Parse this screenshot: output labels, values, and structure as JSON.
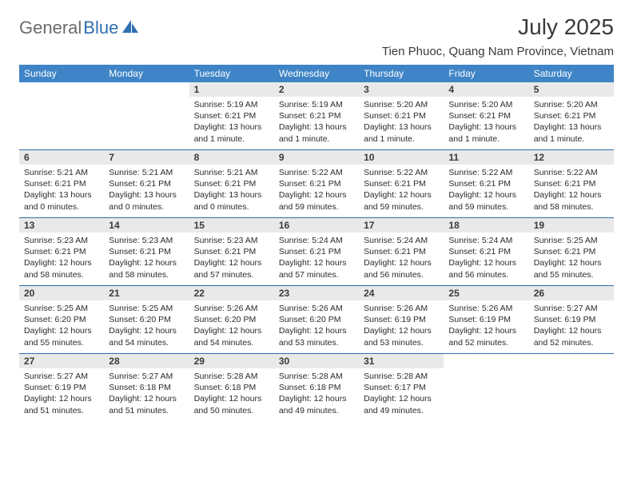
{
  "brand": {
    "part1": "General",
    "part2": "Blue"
  },
  "title": "July 2025",
  "location": "Tien Phuoc, Quang Nam Province, Vietnam",
  "colors": {
    "header_bg": "#3e84c6",
    "header_text": "#ffffff",
    "daynum_bg": "#e9e9e9",
    "week_border": "#2f6fb0",
    "brand_gray": "#6b6b6b",
    "brand_blue": "#2f6fb0"
  },
  "weekdays": [
    "Sunday",
    "Monday",
    "Tuesday",
    "Wednesday",
    "Thursday",
    "Friday",
    "Saturday"
  ],
  "weeks": [
    [
      {
        "day": "",
        "sunrise": "",
        "sunset": "",
        "daylight": ""
      },
      {
        "day": "",
        "sunrise": "",
        "sunset": "",
        "daylight": ""
      },
      {
        "day": "1",
        "sunrise": "Sunrise: 5:19 AM",
        "sunset": "Sunset: 6:21 PM",
        "daylight": "Daylight: 13 hours and 1 minute."
      },
      {
        "day": "2",
        "sunrise": "Sunrise: 5:19 AM",
        "sunset": "Sunset: 6:21 PM",
        "daylight": "Daylight: 13 hours and 1 minute."
      },
      {
        "day": "3",
        "sunrise": "Sunrise: 5:20 AM",
        "sunset": "Sunset: 6:21 PM",
        "daylight": "Daylight: 13 hours and 1 minute."
      },
      {
        "day": "4",
        "sunrise": "Sunrise: 5:20 AM",
        "sunset": "Sunset: 6:21 PM",
        "daylight": "Daylight: 13 hours and 1 minute."
      },
      {
        "day": "5",
        "sunrise": "Sunrise: 5:20 AM",
        "sunset": "Sunset: 6:21 PM",
        "daylight": "Daylight: 13 hours and 1 minute."
      }
    ],
    [
      {
        "day": "6",
        "sunrise": "Sunrise: 5:21 AM",
        "sunset": "Sunset: 6:21 PM",
        "daylight": "Daylight: 13 hours and 0 minutes."
      },
      {
        "day": "7",
        "sunrise": "Sunrise: 5:21 AM",
        "sunset": "Sunset: 6:21 PM",
        "daylight": "Daylight: 13 hours and 0 minutes."
      },
      {
        "day": "8",
        "sunrise": "Sunrise: 5:21 AM",
        "sunset": "Sunset: 6:21 PM",
        "daylight": "Daylight: 13 hours and 0 minutes."
      },
      {
        "day": "9",
        "sunrise": "Sunrise: 5:22 AM",
        "sunset": "Sunset: 6:21 PM",
        "daylight": "Daylight: 12 hours and 59 minutes."
      },
      {
        "day": "10",
        "sunrise": "Sunrise: 5:22 AM",
        "sunset": "Sunset: 6:21 PM",
        "daylight": "Daylight: 12 hours and 59 minutes."
      },
      {
        "day": "11",
        "sunrise": "Sunrise: 5:22 AM",
        "sunset": "Sunset: 6:21 PM",
        "daylight": "Daylight: 12 hours and 59 minutes."
      },
      {
        "day": "12",
        "sunrise": "Sunrise: 5:22 AM",
        "sunset": "Sunset: 6:21 PM",
        "daylight": "Daylight: 12 hours and 58 minutes."
      }
    ],
    [
      {
        "day": "13",
        "sunrise": "Sunrise: 5:23 AM",
        "sunset": "Sunset: 6:21 PM",
        "daylight": "Daylight: 12 hours and 58 minutes."
      },
      {
        "day": "14",
        "sunrise": "Sunrise: 5:23 AM",
        "sunset": "Sunset: 6:21 PM",
        "daylight": "Daylight: 12 hours and 58 minutes."
      },
      {
        "day": "15",
        "sunrise": "Sunrise: 5:23 AM",
        "sunset": "Sunset: 6:21 PM",
        "daylight": "Daylight: 12 hours and 57 minutes."
      },
      {
        "day": "16",
        "sunrise": "Sunrise: 5:24 AM",
        "sunset": "Sunset: 6:21 PM",
        "daylight": "Daylight: 12 hours and 57 minutes."
      },
      {
        "day": "17",
        "sunrise": "Sunrise: 5:24 AM",
        "sunset": "Sunset: 6:21 PM",
        "daylight": "Daylight: 12 hours and 56 minutes."
      },
      {
        "day": "18",
        "sunrise": "Sunrise: 5:24 AM",
        "sunset": "Sunset: 6:21 PM",
        "daylight": "Daylight: 12 hours and 56 minutes."
      },
      {
        "day": "19",
        "sunrise": "Sunrise: 5:25 AM",
        "sunset": "Sunset: 6:21 PM",
        "daylight": "Daylight: 12 hours and 55 minutes."
      }
    ],
    [
      {
        "day": "20",
        "sunrise": "Sunrise: 5:25 AM",
        "sunset": "Sunset: 6:20 PM",
        "daylight": "Daylight: 12 hours and 55 minutes."
      },
      {
        "day": "21",
        "sunrise": "Sunrise: 5:25 AM",
        "sunset": "Sunset: 6:20 PM",
        "daylight": "Daylight: 12 hours and 54 minutes."
      },
      {
        "day": "22",
        "sunrise": "Sunrise: 5:26 AM",
        "sunset": "Sunset: 6:20 PM",
        "daylight": "Daylight: 12 hours and 54 minutes."
      },
      {
        "day": "23",
        "sunrise": "Sunrise: 5:26 AM",
        "sunset": "Sunset: 6:20 PM",
        "daylight": "Daylight: 12 hours and 53 minutes."
      },
      {
        "day": "24",
        "sunrise": "Sunrise: 5:26 AM",
        "sunset": "Sunset: 6:19 PM",
        "daylight": "Daylight: 12 hours and 53 minutes."
      },
      {
        "day": "25",
        "sunrise": "Sunrise: 5:26 AM",
        "sunset": "Sunset: 6:19 PM",
        "daylight": "Daylight: 12 hours and 52 minutes."
      },
      {
        "day": "26",
        "sunrise": "Sunrise: 5:27 AM",
        "sunset": "Sunset: 6:19 PM",
        "daylight": "Daylight: 12 hours and 52 minutes."
      }
    ],
    [
      {
        "day": "27",
        "sunrise": "Sunrise: 5:27 AM",
        "sunset": "Sunset: 6:19 PM",
        "daylight": "Daylight: 12 hours and 51 minutes."
      },
      {
        "day": "28",
        "sunrise": "Sunrise: 5:27 AM",
        "sunset": "Sunset: 6:18 PM",
        "daylight": "Daylight: 12 hours and 51 minutes."
      },
      {
        "day": "29",
        "sunrise": "Sunrise: 5:28 AM",
        "sunset": "Sunset: 6:18 PM",
        "daylight": "Daylight: 12 hours and 50 minutes."
      },
      {
        "day": "30",
        "sunrise": "Sunrise: 5:28 AM",
        "sunset": "Sunset: 6:18 PM",
        "daylight": "Daylight: 12 hours and 49 minutes."
      },
      {
        "day": "31",
        "sunrise": "Sunrise: 5:28 AM",
        "sunset": "Sunset: 6:17 PM",
        "daylight": "Daylight: 12 hours and 49 minutes."
      },
      {
        "day": "",
        "sunrise": "",
        "sunset": "",
        "daylight": ""
      },
      {
        "day": "",
        "sunrise": "",
        "sunset": "",
        "daylight": ""
      }
    ]
  ]
}
